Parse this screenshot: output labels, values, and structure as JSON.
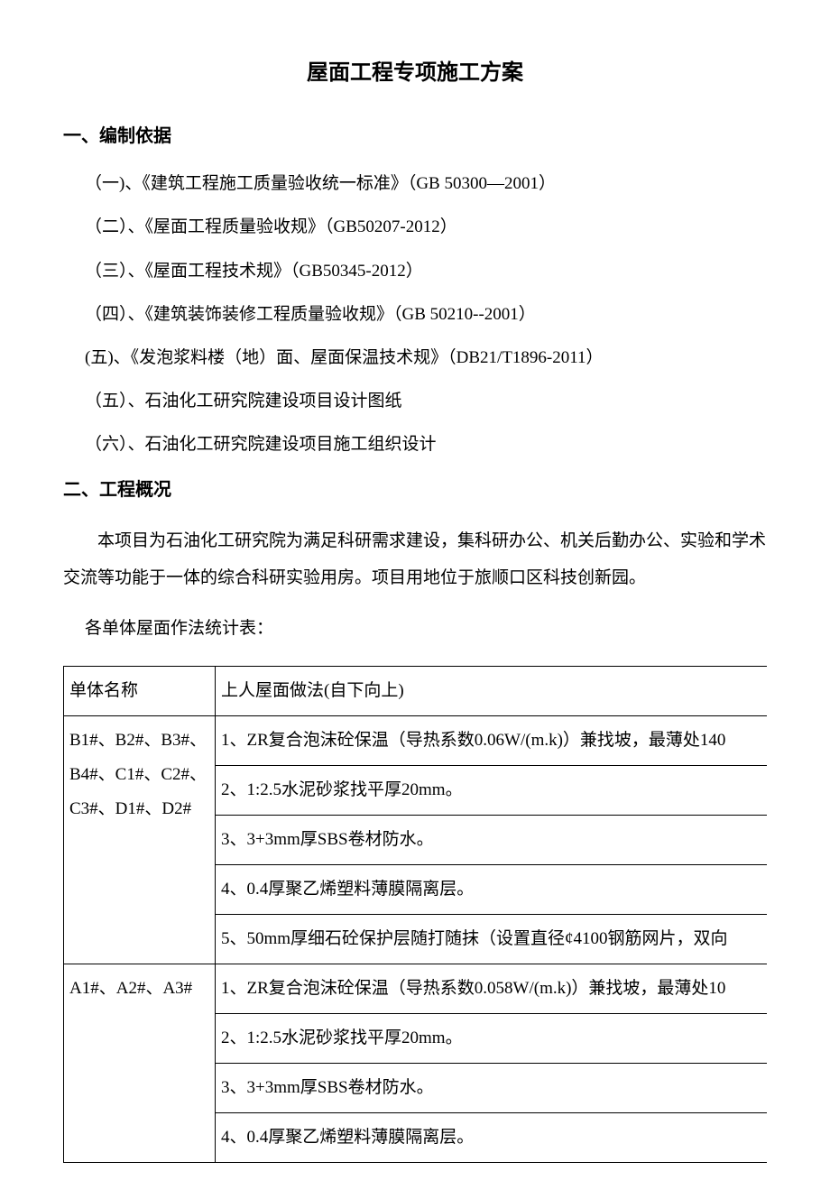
{
  "title": "屋面工程专项施工方案",
  "section1": {
    "heading": "一、编制依据",
    "items": [
      "（一)、《建筑工程施工质量验收统一标准》（GB 50300—2001）",
      "（二）、《屋面工程质量验收规》（GB50207-2012）",
      "（三）、《屋面工程技术规》（GB50345-2012）",
      "（四）、《建筑装饰装修工程质量验收规》（GB 50210--2001）",
      "(五)、《发泡浆料楼（地）面、屋面保温技术规》（DB21/T1896-2011）",
      "（五）、石油化工研究院建设项目设计图纸",
      "（六）、石油化工研究院建设项目施工组织设计"
    ]
  },
  "section2": {
    "heading": "二、工程概况",
    "body": "本项目为石油化工研究院为满足科研需求建设，集科研办公、机关后勤办公、实验和学术交流等功能于一体的综合科研实验用房。项目用地位于旅顺口区科技创新园。",
    "table_intro": "各单体屋面作法统计表："
  },
  "table": {
    "header": {
      "col1": "单体名称",
      "col2": "上人屋面做法(自下向上)"
    },
    "group1": {
      "name": "B1#、B2#、B3#、B4#、C1#、C2#、C3#、D1#、D2#",
      "rows": [
        "1、ZR复合泡沫砼保温（导热系数0.06W/(m.k)）兼找坡，最薄处140",
        "2、1:2.5水泥砂浆找平厚20mm。",
        "3、3+3mm厚SBS卷材防水。",
        "4、0.4厚聚乙烯塑料薄膜隔离层。",
        "5、50mm厚细石砼保护层随打随抹（设置直径¢4100钢筋网片，双向"
      ]
    },
    "group2": {
      "name": "A1#、A2#、A3#",
      "rows": [
        "1、ZR复合泡沫砼保温（导热系数0.058W/(m.k)）兼找坡，最薄处10",
        "2、1:2.5水泥砂浆找平厚20mm。",
        "3、3+3mm厚SBS卷材防水。",
        "4、0.4厚聚乙烯塑料薄膜隔离层。"
      ]
    }
  },
  "colors": {
    "text": "#000000",
    "background": "#ffffff",
    "border": "#000000"
  },
  "typography": {
    "title_fontsize": 24,
    "heading_fontsize": 20,
    "body_fontsize": 19,
    "font_family": "SimSun"
  }
}
